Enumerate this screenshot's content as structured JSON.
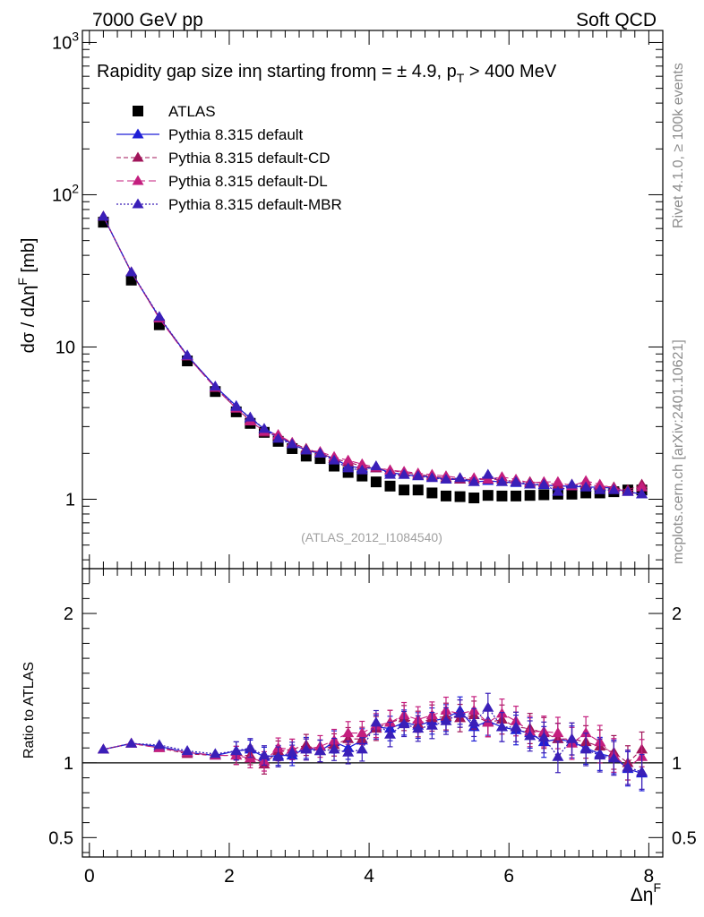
{
  "header": {
    "left": "7000 GeV pp",
    "right": "Soft QCD"
  },
  "side_text": {
    "top": "Rivet 4.1.0, ≥ 100k events",
    "bottom": "mcplots.cern.ch [arXiv:2401.10621]"
  },
  "colors": {
    "atlas": "#000000",
    "default": "#1f1fd6",
    "cd": "#a0155a",
    "dl": "#c41e7e",
    "mbr": "#3a1fb8",
    "frame": "#000000"
  },
  "chart_data": [
    {
      "type": "scatter",
      "panel": "main",
      "title": "Rapidity gap size in η starting from η = ± 4.9, p_T > 400 MeV",
      "title_parts": {
        "a": "Rapidity gap size in",
        "b": "η starting from",
        "c": "η = ± 4.9, p",
        "sub": "T",
        "d": " > 400 MeV"
      },
      "ylabel": "dσ / dΔηF [mb]",
      "ylabel_parts": {
        "a": "dσ / dΔη",
        "sup": "F",
        "b": " [mb]"
      },
      "yscale": "log",
      "ylim": [
        0.35,
        1200
      ],
      "xlim": [
        -0.1,
        8.2
      ],
      "yticks": [
        {
          "value": 1,
          "label": "1",
          "exp": ""
        },
        {
          "value": 10,
          "label": "10",
          "exp": ""
        },
        {
          "value": 100,
          "label": "10",
          "exp": "2"
        },
        {
          "value": 1000,
          "label": "10",
          "exp": "3"
        }
      ],
      "analysis_label": "(ATLAS_2012_I1084540)",
      "legend": [
        {
          "key": "atlas",
          "label": "ATLAS"
        },
        {
          "key": "default",
          "label": "Pythia 8.315 default"
        },
        {
          "key": "cd",
          "label": "Pythia 8.315 default-CD"
        },
        {
          "key": "dl",
          "label": "Pythia 8.315 default-DL"
        },
        {
          "key": "mbr",
          "label": "Pythia 8.315 default-MBR"
        }
      ],
      "x": [
        0.2,
        0.6,
        1.0,
        1.4,
        1.8,
        2.1,
        2.3,
        2.5,
        2.7,
        2.9,
        3.1,
        3.3,
        3.5,
        3.7,
        3.9,
        4.1,
        4.3,
        4.5,
        4.7,
        4.9,
        5.1,
        5.3,
        5.5,
        5.7,
        5.9,
        6.1,
        6.3,
        6.5,
        6.7,
        6.9,
        7.1,
        7.3,
        7.5,
        7.7,
        7.9
      ],
      "series": [
        {
          "key": "atlas",
          "name": "ATLAS",
          "values": [
            66,
            27.5,
            14,
            8.1,
            5.1,
            3.75,
            3.15,
            2.75,
            2.4,
            2.15,
            1.92,
            1.85,
            1.65,
            1.5,
            1.42,
            1.3,
            1.22,
            1.15,
            1.15,
            1.1,
            1.05,
            1.04,
            1.02,
            1.06,
            1.05,
            1.05,
            1.06,
            1.07,
            1.08,
            1.08,
            1.1,
            1.1,
            1.12,
            1.15,
            1.15
          ]
        },
        {
          "key": "default",
          "name": "Pythia 8.315 default",
          "values": [
            72,
            31,
            15.6,
            8.8,
            5.5,
            4.1,
            3.4,
            2.9,
            2.6,
            2.3,
            2.1,
            2.0,
            1.85,
            1.65,
            1.6,
            1.6,
            1.5,
            1.45,
            1.42,
            1.4,
            1.35,
            1.35,
            1.3,
            1.32,
            1.3,
            1.28,
            1.25,
            1.24,
            1.22,
            1.22,
            1.2,
            1.2,
            1.18,
            1.12,
            1.08
          ]
        },
        {
          "key": "cd",
          "name": "Pythia 8.315 default-CD",
          "values": [
            72,
            31,
            15.5,
            8.7,
            5.4,
            3.95,
            3.3,
            2.75,
            2.6,
            2.35,
            2.15,
            2.0,
            1.85,
            1.75,
            1.65,
            1.6,
            1.55,
            1.5,
            1.45,
            1.42,
            1.38,
            1.35,
            1.35,
            1.35,
            1.35,
            1.3,
            1.3,
            1.28,
            1.25,
            1.25,
            1.25,
            1.22,
            1.2,
            1.15,
            1.25
          ]
        },
        {
          "key": "dl",
          "name": "Pythia 8.315 default-DL",
          "values": [
            72,
            31,
            15.4,
            8.7,
            5.4,
            3.95,
            3.25,
            2.8,
            2.65,
            2.35,
            2.1,
            2.05,
            1.9,
            1.8,
            1.7,
            1.62,
            1.55,
            1.52,
            1.48,
            1.45,
            1.42,
            1.38,
            1.38,
            1.35,
            1.4,
            1.35,
            1.28,
            1.3,
            1.3,
            1.22,
            1.32,
            1.25,
            1.18,
            1.12,
            1.2
          ]
        },
        {
          "key": "mbr",
          "name": "Pythia 8.315 default-MBR",
          "values": [
            72,
            31,
            15.8,
            8.8,
            5.5,
            4.05,
            3.45,
            2.9,
            2.5,
            2.3,
            2.1,
            2.0,
            1.8,
            1.6,
            1.55,
            1.65,
            1.45,
            1.45,
            1.42,
            1.38,
            1.35,
            1.38,
            1.3,
            1.45,
            1.3,
            1.3,
            1.25,
            1.25,
            1.12,
            1.25,
            1.2,
            1.15,
            1.15,
            1.12,
            1.08
          ]
        }
      ]
    },
    {
      "type": "scatter",
      "panel": "ratio",
      "xlabel": "ΔηF",
      "xlabel_parts": {
        "a": "Δη",
        "sup": "F"
      },
      "ylabel": "Ratio to ATLAS",
      "ylim": [
        0.37,
        2.3
      ],
      "xlim": [
        -0.1,
        8.2
      ],
      "reference_line": 1,
      "xticks": [
        0,
        2,
        4,
        6,
        8
      ],
      "xtick_labels": [
        "0",
        "2",
        "4",
        "6",
        "8"
      ],
      "yticks": [
        0.5,
        1,
        2
      ],
      "ytick_labels": [
        "0.5",
        "1",
        "2"
      ],
      "x": [
        0.2,
        0.6,
        1.0,
        1.4,
        1.8,
        2.1,
        2.3,
        2.5,
        2.7,
        2.9,
        3.1,
        3.3,
        3.5,
        3.7,
        3.9,
        4.1,
        4.3,
        4.5,
        4.7,
        4.9,
        5.1,
        5.3,
        5.5,
        5.7,
        5.9,
        6.1,
        6.3,
        6.5,
        6.7,
        6.9,
        7.1,
        7.3,
        7.5,
        7.7,
        7.9
      ],
      "series": [
        {
          "key": "default",
          "name": "Pythia 8.315 default",
          "values": [
            1.09,
            1.13,
            1.11,
            1.07,
            1.05,
            1.08,
            1.09,
            1.04,
            1.05,
            1.05,
            1.1,
            1.08,
            1.14,
            1.1,
            1.15,
            1.24,
            1.23,
            1.27,
            1.25,
            1.28,
            1.3,
            1.35,
            1.24,
            1.28,
            1.24,
            1.22,
            1.2,
            1.14,
            1.16,
            1.14,
            1.1,
            1.06,
            1.04,
            0.96,
            0.93
          ]
        },
        {
          "key": "cd",
          "name": "Pythia 8.315 default-CD",
          "values": [
            1.09,
            1.13,
            1.1,
            1.06,
            1.05,
            1.05,
            1.05,
            0.99,
            1.08,
            1.09,
            1.12,
            1.08,
            1.12,
            1.16,
            1.16,
            1.23,
            1.27,
            1.3,
            1.26,
            1.3,
            1.31,
            1.3,
            1.32,
            1.27,
            1.29,
            1.24,
            1.23,
            1.2,
            1.16,
            1.16,
            1.14,
            1.11,
            1.07,
            1.0,
            1.09
          ]
        },
        {
          "key": "dl",
          "name": "Pythia 8.315 default-DL",
          "values": [
            1.09,
            1.13,
            1.1,
            1.07,
            1.05,
            1.05,
            1.03,
            1.01,
            1.1,
            1.09,
            1.09,
            1.11,
            1.15,
            1.2,
            1.2,
            1.25,
            1.27,
            1.32,
            1.29,
            1.32,
            1.35,
            1.33,
            1.35,
            1.27,
            1.33,
            1.28,
            1.21,
            1.21,
            1.2,
            1.13,
            1.2,
            1.14,
            1.05,
            0.97,
            1.04
          ]
        },
        {
          "key": "mbr",
          "name": "Pythia 8.315 default-MBR",
          "values": [
            1.09,
            1.13,
            1.12,
            1.08,
            1.06,
            1.08,
            1.1,
            1.05,
            1.04,
            1.07,
            1.09,
            1.08,
            1.09,
            1.07,
            1.09,
            1.27,
            1.19,
            1.26,
            1.23,
            1.25,
            1.28,
            1.33,
            1.27,
            1.37,
            1.24,
            1.24,
            1.18,
            1.17,
            1.04,
            1.16,
            1.09,
            1.05,
            1.03,
            0.97,
            0.94
          ]
        }
      ]
    }
  ]
}
